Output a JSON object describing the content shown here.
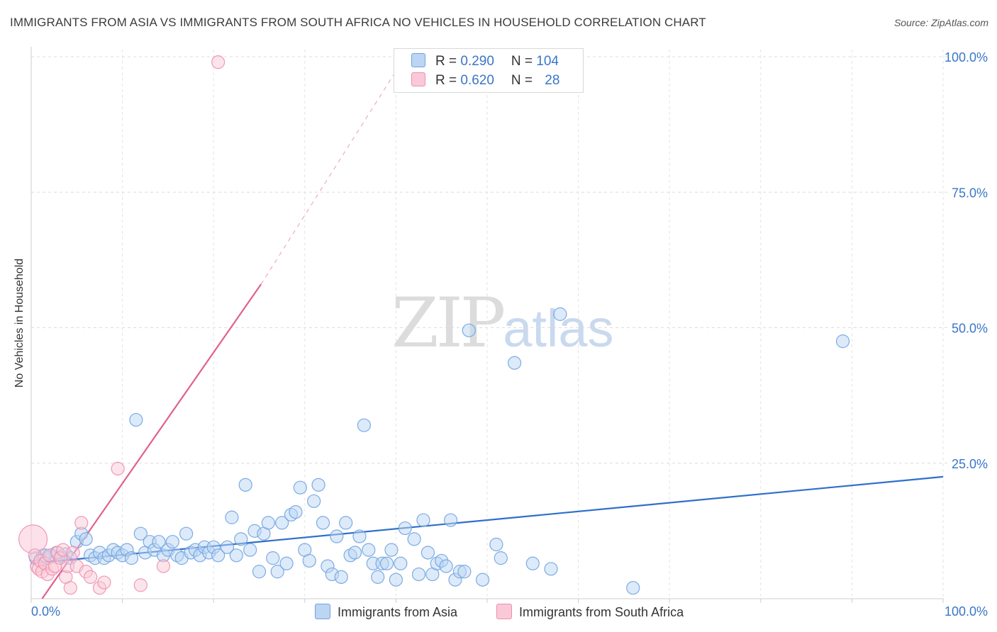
{
  "header": {
    "title": "IMMIGRANTS FROM ASIA VS IMMIGRANTS FROM SOUTH AFRICA NO VEHICLES IN HOUSEHOLD CORRELATION CHART",
    "source": "Source: ZipAtlas.com"
  },
  "watermark": {
    "zip": "ZIP",
    "atlas": "atlas"
  },
  "stats_legend": [
    {
      "r_label": "R = ",
      "r_value": "0.290",
      "n_label": "N = ",
      "n_value": "104",
      "color": "#a8c8ef"
    },
    {
      "r_label": "R = ",
      "r_value": "0.620",
      "n_label": "N = ",
      "n_value": "28",
      "color": "#f5b8cc"
    }
  ],
  "chart_data": {
    "type": "scatter",
    "title": "IMMIGRANTS FROM ASIA VS IMMIGRANTS FROM SOUTH AFRICA NO VEHICLES IN HOUSEHOLD CORRELATION CHART",
    "xlabel": "",
    "ylabel": "No Vehicles in Household",
    "xlim": [
      0,
      100
    ],
    "ylim": [
      0,
      100
    ],
    "x_tick_labels": [
      "0.0%",
      "100.0%"
    ],
    "y_tick_labels": [
      "25.0%",
      "50.0%",
      "75.0%",
      "100.0%"
    ],
    "y_ticks": [
      25,
      50,
      75,
      100
    ],
    "grid": true,
    "series": [
      {
        "name": "Immigrants from Asia",
        "color": "#6fa3e0",
        "fill": "#bcd5f3",
        "trend": {
          "x": [
            0,
            100
          ],
          "y": [
            6.5,
            22.5
          ],
          "color": "#2f6fcb"
        },
        "points": [
          [
            0.5,
            7.5
          ],
          [
            1.0,
            7.0
          ],
          [
            1.3,
            8.0
          ],
          [
            1.8,
            7.5
          ],
          [
            2.2,
            8.0
          ],
          [
            2.8,
            8.5
          ],
          [
            3.3,
            7.8
          ],
          [
            3.8,
            8.2
          ],
          [
            4.3,
            7.5
          ],
          [
            5.0,
            10.5
          ],
          [
            5.5,
            12.0
          ],
          [
            6.0,
            11.0
          ],
          [
            6.5,
            8.0
          ],
          [
            7.0,
            7.5
          ],
          [
            7.5,
            8.5
          ],
          [
            8.0,
            7.5
          ],
          [
            8.5,
            8.0
          ],
          [
            9.0,
            9.0
          ],
          [
            9.5,
            8.5
          ],
          [
            10.0,
            8.0
          ],
          [
            10.5,
            9.0
          ],
          [
            11.0,
            7.5
          ],
          [
            11.5,
            33.0
          ],
          [
            12.0,
            12.0
          ],
          [
            12.5,
            8.5
          ],
          [
            13.0,
            10.5
          ],
          [
            13.5,
            9.0
          ],
          [
            14.0,
            10.5
          ],
          [
            14.5,
            8.0
          ],
          [
            15.0,
            9.0
          ],
          [
            15.5,
            10.5
          ],
          [
            16.0,
            8.0
          ],
          [
            16.5,
            7.5
          ],
          [
            17.0,
            12.0
          ],
          [
            17.5,
            8.5
          ],
          [
            18.0,
            9.0
          ],
          [
            18.5,
            8.0
          ],
          [
            19.0,
            9.5
          ],
          [
            19.5,
            8.5
          ],
          [
            20.0,
            9.5
          ],
          [
            20.5,
            8.0
          ],
          [
            21.5,
            9.5
          ],
          [
            22.0,
            15.0
          ],
          [
            22.5,
            8.0
          ],
          [
            23.0,
            11.0
          ],
          [
            23.5,
            21.0
          ],
          [
            24.0,
            9.0
          ],
          [
            24.5,
            12.5
          ],
          [
            25.0,
            5.0
          ],
          [
            25.5,
            12.0
          ],
          [
            26.0,
            14.0
          ],
          [
            26.5,
            7.5
          ],
          [
            27.0,
            5.0
          ],
          [
            27.5,
            14.0
          ],
          [
            28.0,
            6.5
          ],
          [
            28.5,
            15.5
          ],
          [
            29.0,
            16.0
          ],
          [
            29.5,
            20.5
          ],
          [
            30.0,
            9.0
          ],
          [
            30.5,
            7.0
          ],
          [
            31.0,
            18.0
          ],
          [
            31.5,
            21.0
          ],
          [
            32.0,
            14.0
          ],
          [
            32.5,
            6.0
          ],
          [
            33.0,
            4.5
          ],
          [
            33.5,
            11.5
          ],
          [
            34.0,
            4.0
          ],
          [
            34.5,
            14.0
          ],
          [
            35.0,
            8.0
          ],
          [
            35.5,
            8.5
          ],
          [
            36.0,
            11.5
          ],
          [
            36.5,
            32.0
          ],
          [
            37.0,
            9.0
          ],
          [
            37.5,
            6.5
          ],
          [
            38.0,
            4.0
          ],
          [
            38.5,
            6.5
          ],
          [
            39.0,
            6.5
          ],
          [
            39.5,
            9.0
          ],
          [
            40.0,
            3.5
          ],
          [
            40.5,
            6.5
          ],
          [
            41.0,
            13.0
          ],
          [
            42.0,
            11.0
          ],
          [
            42.5,
            4.5
          ],
          [
            43.0,
            14.5
          ],
          [
            43.5,
            8.5
          ],
          [
            44.0,
            4.5
          ],
          [
            44.5,
            6.5
          ],
          [
            45.0,
            7.0
          ],
          [
            45.5,
            6.0
          ],
          [
            46.0,
            14.5
          ],
          [
            46.5,
            3.5
          ],
          [
            47.0,
            5.0
          ],
          [
            47.5,
            5.0
          ],
          [
            48.0,
            49.5
          ],
          [
            49.5,
            3.5
          ],
          [
            51.0,
            10.0
          ],
          [
            51.5,
            7.5
          ],
          [
            53.0,
            43.5
          ],
          [
            55.0,
            6.5
          ],
          [
            57.0,
            5.5
          ],
          [
            58.0,
            52.5
          ],
          [
            66.0,
            2.0
          ],
          [
            89.0,
            47.5
          ],
          [
            1.5,
            8.0
          ]
        ]
      },
      {
        "name": "Immigrants from South Africa",
        "color": "#ee8fae",
        "fill": "#f9c9d8",
        "trend": {
          "x": [
            1.2,
            25.2
          ],
          "y": [
            0,
            58
          ],
          "dash_to": [
            41,
            100
          ],
          "color": "#e0608e"
        },
        "points": [
          [
            0.2,
            11.0
          ],
          [
            0.4,
            8.0
          ],
          [
            0.6,
            6.0
          ],
          [
            0.8,
            5.5
          ],
          [
            1.0,
            7.0
          ],
          [
            1.2,
            5.0
          ],
          [
            1.5,
            6.5
          ],
          [
            1.8,
            4.5
          ],
          [
            2.0,
            8.0
          ],
          [
            2.3,
            5.5
          ],
          [
            2.6,
            6.0
          ],
          [
            2.9,
            8.5
          ],
          [
            3.2,
            7.5
          ],
          [
            3.5,
            9.0
          ],
          [
            3.8,
            4.0
          ],
          [
            4.0,
            6.0
          ],
          [
            4.3,
            2.0
          ],
          [
            4.6,
            8.5
          ],
          [
            5.0,
            6.0
          ],
          [
            5.5,
            14.0
          ],
          [
            6.0,
            5.0
          ],
          [
            6.5,
            4.0
          ],
          [
            7.5,
            2.0
          ],
          [
            8.0,
            3.0
          ],
          [
            9.5,
            24.0
          ],
          [
            12.0,
            2.5
          ],
          [
            14.5,
            6.0
          ],
          [
            20.5,
            99.0
          ]
        ]
      }
    ]
  },
  "bottom_legend": [
    {
      "label": "Immigrants from Asia",
      "color": "#a8c8ef"
    },
    {
      "label": "Immigrants from South Africa",
      "color": "#f5b8cc"
    }
  ]
}
